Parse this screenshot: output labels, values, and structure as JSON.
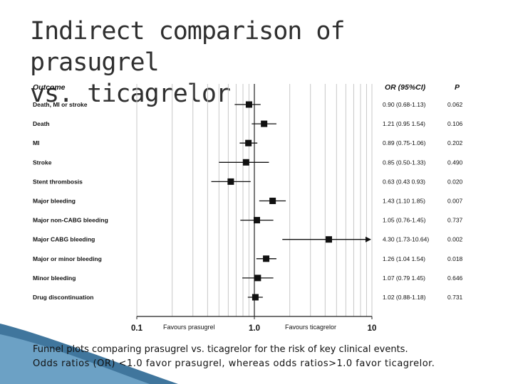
{
  "slide": {
    "title_line1": "Indirect comparison of prasugrel",
    "title_line2": "vs. ticagrelor",
    "caption_line1": "Funnel plots comparing prasugrel vs. ticagrelor for the risk of key clinical events.",
    "caption_line2": "Odds ratios (OR) <1.0 favor prasugrel, whereas odds ratios>1.0 favor ticagrelor."
  },
  "colors": {
    "title": "#2f2f2f",
    "marker": "#111111",
    "grid": "#c8c8c8",
    "text": "#111111",
    "accent": "#1f5e8c"
  },
  "chart_data": {
    "type": "forest",
    "scale": "log",
    "xlim": [
      0.1,
      10
    ],
    "x_ticks": [
      {
        "value": 0.1,
        "label": "0.1"
      },
      {
        "value": 1.0,
        "label": "1.0"
      },
      {
        "value": 10,
        "label": "10"
      }
    ],
    "xlabel_left": "Favours prasugrel",
    "xlabel_right": "Favours ticagrelor",
    "header_outcome": "Outcome",
    "header_or": "OR (95%CI)",
    "header_p": "P",
    "reference_line": 1.0,
    "grid": true,
    "outcomes": [
      {
        "name": "Death, MI or stroke",
        "or": 0.9,
        "lo": 0.68,
        "hi": 1.13,
        "ci_label": "0.90 (0.68-1.13)",
        "p": "0.062"
      },
      {
        "name": "Death",
        "or": 1.21,
        "lo": 0.95,
        "hi": 1.54,
        "ci_label": "1.21 (0.95 1.54)",
        "p": "0.106"
      },
      {
        "name": "MI",
        "or": 0.89,
        "lo": 0.75,
        "hi": 1.06,
        "ci_label": "0.89 (0.75-1.06)",
        "p": "0.202"
      },
      {
        "name": "Stroke",
        "or": 0.85,
        "lo": 0.5,
        "hi": 1.33,
        "ci_label": "0.85 (0.50-1.33)",
        "p": "0.490"
      },
      {
        "name": "Stent thrombosis",
        "or": 0.63,
        "lo": 0.43,
        "hi": 0.93,
        "ci_label": "0.63 (0.43 0.93)",
        "p": "0.020"
      },
      {
        "name": "Major bleeding",
        "or": 1.43,
        "lo": 1.1,
        "hi": 1.85,
        "ci_label": "1.43 (1.10 1.85)",
        "p": "0.007"
      },
      {
        "name": "Major non-CABG bleeding",
        "or": 1.05,
        "lo": 0.76,
        "hi": 1.45,
        "ci_label": "1.05 (0.76-1.45)",
        "p": "0.737"
      },
      {
        "name": "Major CABG bleeding",
        "or": 4.3,
        "lo": 1.73,
        "hi": 10.64,
        "ci_label": "4.30 (1.73-10.64)",
        "p": "0.002",
        "arrow": true
      },
      {
        "name": "Major or minor bleeding",
        "or": 1.26,
        "lo": 1.04,
        "hi": 1.54,
        "ci_label": "1.26 (1.04 1.54)",
        "p": "0.018"
      },
      {
        "name": "Minor bleeding",
        "or": 1.07,
        "lo": 0.79,
        "hi": 1.45,
        "ci_label": "1.07 (0.79 1.45)",
        "p": "0.646"
      },
      {
        "name": "Drug discontinuation",
        "or": 1.02,
        "lo": 0.88,
        "hi": 1.18,
        "ci_label": "1.02 (0.88-1.18)",
        "p": "0.731"
      }
    ]
  }
}
